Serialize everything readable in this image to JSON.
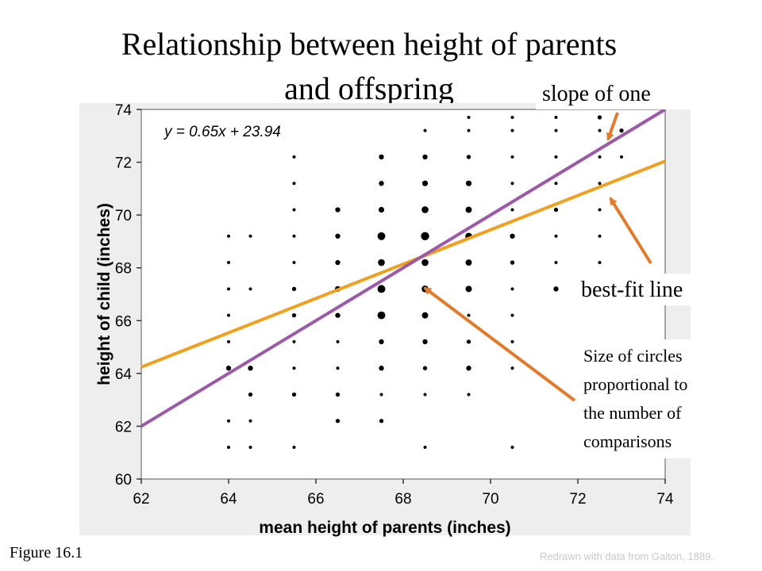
{
  "slide": {
    "title_line1": "Relationship between height of parents",
    "title_line2": "and offspring",
    "figure_label": "Figure 16.1",
    "credit": "Redrawn with data from Galton, 1889."
  },
  "annotations": {
    "slope_of_one": "slope of one",
    "best_fit_line": "best-fit line",
    "circle_size_note": [
      "Size of circles",
      "proportional to",
      "the number of",
      "comparisons"
    ],
    "arrow_color": "#e07b2e"
  },
  "chart_data": {
    "type": "scatter",
    "xlabel": "mean height of parents (inches)",
    "ylabel": "height of child (inches)",
    "xlim": [
      62,
      74
    ],
    "ylim": [
      60,
      74
    ],
    "xticks": [
      62,
      64,
      66,
      68,
      70,
      72,
      74
    ],
    "yticks": [
      60,
      62,
      64,
      66,
      68,
      70,
      72,
      74
    ],
    "equation_label": "y = 0.65x + 23.94",
    "background_color": "#eeeeee",
    "point_color": "#000000",
    "lines": [
      {
        "id": "best-fit-line",
        "slope": 0.65,
        "intercept": 23.94,
        "color": "#f0a020"
      },
      {
        "id": "slope-of-one-line",
        "slope": 1,
        "intercept": 0,
        "color": "#9b59a8"
      }
    ],
    "points": [
      {
        "x": 64,
        "y": 62.2,
        "size": 1
      },
      {
        "x": 64,
        "y": 61.2,
        "size": 1
      },
      {
        "x": 64,
        "y": 64.2,
        "size": 3
      },
      {
        "x": 64,
        "y": 65.2,
        "size": 1
      },
      {
        "x": 64,
        "y": 66.2,
        "size": 1
      },
      {
        "x": 64,
        "y": 67.2,
        "size": 1
      },
      {
        "x": 64,
        "y": 68.2,
        "size": 1
      },
      {
        "x": 64,
        "y": 69.2,
        "size": 1
      },
      {
        "x": 64.5,
        "y": 61.2,
        "size": 1
      },
      {
        "x": 64.5,
        "y": 62.2,
        "size": 1
      },
      {
        "x": 64.5,
        "y": 63.2,
        "size": 2
      },
      {
        "x": 64.5,
        "y": 64.2,
        "size": 3
      },
      {
        "x": 64.5,
        "y": 67.2,
        "size": 1
      },
      {
        "x": 64.5,
        "y": 69.2,
        "size": 1
      },
      {
        "x": 65.5,
        "y": 61.2,
        "size": 1
      },
      {
        "x": 65.5,
        "y": 63.2,
        "size": 2
      },
      {
        "x": 65.5,
        "y": 64.2,
        "size": 1
      },
      {
        "x": 65.5,
        "y": 65.2,
        "size": 1
      },
      {
        "x": 65.5,
        "y": 66.2,
        "size": 2
      },
      {
        "x": 65.5,
        "y": 67.2,
        "size": 2
      },
      {
        "x": 65.5,
        "y": 68.2,
        "size": 1
      },
      {
        "x": 65.5,
        "y": 69.2,
        "size": 1
      },
      {
        "x": 65.5,
        "y": 70.2,
        "size": 1
      },
      {
        "x": 65.5,
        "y": 71.2,
        "size": 1
      },
      {
        "x": 65.5,
        "y": 72.2,
        "size": 1
      },
      {
        "x": 66.5,
        "y": 62.2,
        "size": 2
      },
      {
        "x": 66.5,
        "y": 63.2,
        "size": 2
      },
      {
        "x": 66.5,
        "y": 64.2,
        "size": 1
      },
      {
        "x": 66.5,
        "y": 65.2,
        "size": 1
      },
      {
        "x": 66.5,
        "y": 66.2,
        "size": 3
      },
      {
        "x": 66.5,
        "y": 67.2,
        "size": 4
      },
      {
        "x": 66.5,
        "y": 68.2,
        "size": 3
      },
      {
        "x": 66.5,
        "y": 69.2,
        "size": 3
      },
      {
        "x": 66.5,
        "y": 70.2,
        "size": 3
      },
      {
        "x": 67.5,
        "y": 62.2,
        "size": 2
      },
      {
        "x": 67.5,
        "y": 63.2,
        "size": 1
      },
      {
        "x": 67.5,
        "y": 64.2,
        "size": 3
      },
      {
        "x": 67.5,
        "y": 65.2,
        "size": 3
      },
      {
        "x": 67.5,
        "y": 66.2,
        "size": 8
      },
      {
        "x": 67.5,
        "y": 67.2,
        "size": 8
      },
      {
        "x": 67.5,
        "y": 68.2,
        "size": 6
      },
      {
        "x": 67.5,
        "y": 69.2,
        "size": 8
      },
      {
        "x": 67.5,
        "y": 70.2,
        "size": 4
      },
      {
        "x": 67.5,
        "y": 71.2,
        "size": 3
      },
      {
        "x": 67.5,
        "y": 72.2,
        "size": 3
      },
      {
        "x": 68.5,
        "y": 61.2,
        "size": 1
      },
      {
        "x": 68.5,
        "y": 63.2,
        "size": 1
      },
      {
        "x": 68.5,
        "y": 64.2,
        "size": 2
      },
      {
        "x": 68.5,
        "y": 65.2,
        "size": 3
      },
      {
        "x": 68.5,
        "y": 66.2,
        "size": 5
      },
      {
        "x": 68.5,
        "y": 67.2,
        "size": 6
      },
      {
        "x": 68.5,
        "y": 68.2,
        "size": 6
      },
      {
        "x": 68.5,
        "y": 69.2,
        "size": 9
      },
      {
        "x": 68.5,
        "y": 70.2,
        "size": 6
      },
      {
        "x": 68.5,
        "y": 71.2,
        "size": 4
      },
      {
        "x": 68.5,
        "y": 72.2,
        "size": 3
      },
      {
        "x": 68.5,
        "y": 73.2,
        "size": 1
      },
      {
        "x": 69.5,
        "y": 63.2,
        "size": 1
      },
      {
        "x": 69.5,
        "y": 64.2,
        "size": 3
      },
      {
        "x": 69.5,
        "y": 65.2,
        "size": 2
      },
      {
        "x": 69.5,
        "y": 66.2,
        "size": 1
      },
      {
        "x": 69.5,
        "y": 67.2,
        "size": 5
      },
      {
        "x": 69.5,
        "y": 68.2,
        "size": 5
      },
      {
        "x": 69.5,
        "y": 69.2,
        "size": 6
      },
      {
        "x": 69.5,
        "y": 70.2,
        "size": 5
      },
      {
        "x": 69.5,
        "y": 71.2,
        "size": 4
      },
      {
        "x": 69.5,
        "y": 72.2,
        "size": 2
      },
      {
        "x": 69.5,
        "y": 73.2,
        "size": 1
      },
      {
        "x": 69.5,
        "y": 73.7,
        "size": 1
      },
      {
        "x": 70.5,
        "y": 61.2,
        "size": 1
      },
      {
        "x": 70.5,
        "y": 64.2,
        "size": 1
      },
      {
        "x": 70.5,
        "y": 65.2,
        "size": 1
      },
      {
        "x": 70.5,
        "y": 66.2,
        "size": 1
      },
      {
        "x": 70.5,
        "y": 67.2,
        "size": 1
      },
      {
        "x": 70.5,
        "y": 68.2,
        "size": 2
      },
      {
        "x": 70.5,
        "y": 69.2,
        "size": 3
      },
      {
        "x": 70.5,
        "y": 70.2,
        "size": 1
      },
      {
        "x": 70.5,
        "y": 71.2,
        "size": 1
      },
      {
        "x": 70.5,
        "y": 72.2,
        "size": 1
      },
      {
        "x": 70.5,
        "y": 73.2,
        "size": 1
      },
      {
        "x": 70.5,
        "y": 73.7,
        "size": 1
      },
      {
        "x": 71.5,
        "y": 67.2,
        "size": 3
      },
      {
        "x": 71.5,
        "y": 68.2,
        "size": 1
      },
      {
        "x": 71.5,
        "y": 69.2,
        "size": 1
      },
      {
        "x": 71.5,
        "y": 70.2,
        "size": 2
      },
      {
        "x": 71.5,
        "y": 71.2,
        "size": 1
      },
      {
        "x": 71.5,
        "y": 72.2,
        "size": 1
      },
      {
        "x": 71.5,
        "y": 73.2,
        "size": 1
      },
      {
        "x": 71.5,
        "y": 73.7,
        "size": 1
      },
      {
        "x": 72.5,
        "y": 68.2,
        "size": 1
      },
      {
        "x": 72.5,
        "y": 69.2,
        "size": 1
      },
      {
        "x": 72.5,
        "y": 70.2,
        "size": 1
      },
      {
        "x": 72.5,
        "y": 71.2,
        "size": 1
      },
      {
        "x": 72.5,
        "y": 72.2,
        "size": 1
      },
      {
        "x": 72.5,
        "y": 73.2,
        "size": 1
      },
      {
        "x": 72.5,
        "y": 73.7,
        "size": 2
      },
      {
        "x": 73,
        "y": 72.2,
        "size": 1
      },
      {
        "x": 73,
        "y": 73.2,
        "size": 2
      }
    ]
  }
}
